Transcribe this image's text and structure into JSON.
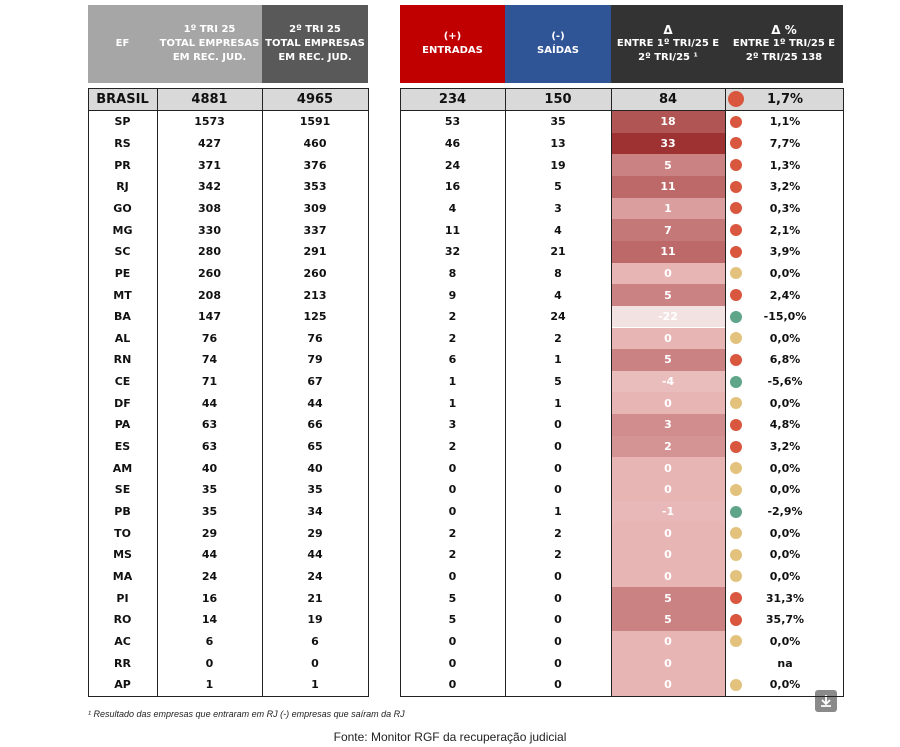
{
  "table": {
    "headers": {
      "ef": [
        "EF"
      ],
      "q1": [
        "1º TRI 25",
        "TOTAL EMPRESAS",
        "EM REC. JUD."
      ],
      "q2": [
        "2º TRI 25",
        "TOTAL EMPRESAS",
        "EM REC. JUD."
      ],
      "in": [
        "(+)",
        "ENTRADAS"
      ],
      "out": [
        "(-)",
        "SAÍDAS"
      ],
      "delta": [
        "Δ",
        "ENTRE  1º TRI/25 E",
        "2º TRI/25 ¹"
      ],
      "pct": [
        "Δ %",
        "ENTRE  1º TRI/25 E",
        "2º TRI/25 138"
      ]
    },
    "total": {
      "ef": "BRASIL",
      "q1": 4881,
      "q2": 4965,
      "in": 234,
      "out": 150,
      "delta": 84,
      "pct": "1,7%",
      "dot": "#d9573f"
    },
    "rows": [
      {
        "ef": "SP",
        "q1": 1573,
        "q2": 1591,
        "in": 53,
        "out": 35,
        "delta": 18,
        "pct": "1,1%",
        "dot": "#d9573f"
      },
      {
        "ef": "RS",
        "q1": 427,
        "q2": 460,
        "in": 46,
        "out": 13,
        "delta": 33,
        "pct": "7,7%",
        "dot": "#d9573f"
      },
      {
        "ef": "PR",
        "q1": 371,
        "q2": 376,
        "in": 24,
        "out": 19,
        "delta": 5,
        "pct": "1,3%",
        "dot": "#d9573f"
      },
      {
        "ef": "RJ",
        "q1": 342,
        "q2": 353,
        "in": 16,
        "out": 5,
        "delta": 11,
        "pct": "3,2%",
        "dot": "#d9573f"
      },
      {
        "ef": "GO",
        "q1": 308,
        "q2": 309,
        "in": 4,
        "out": 3,
        "delta": 1,
        "pct": "0,3%",
        "dot": "#d9573f"
      },
      {
        "ef": "MG",
        "q1": 330,
        "q2": 337,
        "in": 11,
        "out": 4,
        "delta": 7,
        "pct": "2,1%",
        "dot": "#d9573f"
      },
      {
        "ef": "SC",
        "q1": 280,
        "q2": 291,
        "in": 32,
        "out": 21,
        "delta": 11,
        "pct": "3,9%",
        "dot": "#d9573f"
      },
      {
        "ef": "PE",
        "q1": 260,
        "q2": 260,
        "in": 8,
        "out": 8,
        "delta": 0,
        "pct": "0,0%",
        "dot": "#e3c27e"
      },
      {
        "ef": "MT",
        "q1": 208,
        "q2": 213,
        "in": 9,
        "out": 4,
        "delta": 5,
        "pct": "2,4%",
        "dot": "#d9573f"
      },
      {
        "ef": "BA",
        "q1": 147,
        "q2": 125,
        "in": 2,
        "out": 24,
        "delta": -22,
        "pct": "-15,0%",
        "dot": "#5fa58a"
      },
      {
        "ef": "AL",
        "q1": 76,
        "q2": 76,
        "in": 2,
        "out": 2,
        "delta": 0,
        "pct": "0,0%",
        "dot": "#e3c27e"
      },
      {
        "ef": "RN",
        "q1": 74,
        "q2": 79,
        "in": 6,
        "out": 1,
        "delta": 5,
        "pct": "6,8%",
        "dot": "#d9573f"
      },
      {
        "ef": "CE",
        "q1": 71,
        "q2": 67,
        "in": 1,
        "out": 5,
        "delta": -4,
        "pct": "-5,6%",
        "dot": "#5fa58a"
      },
      {
        "ef": "DF",
        "q1": 44,
        "q2": 44,
        "in": 1,
        "out": 1,
        "delta": 0,
        "pct": "0,0%",
        "dot": "#e3c27e"
      },
      {
        "ef": "PA",
        "q1": 63,
        "q2": 66,
        "in": 3,
        "out": 0,
        "delta": 3,
        "pct": "4,8%",
        "dot": "#d9573f"
      },
      {
        "ef": "ES",
        "q1": 63,
        "q2": 65,
        "in": 2,
        "out": 0,
        "delta": 2,
        "pct": "3,2%",
        "dot": "#d9573f"
      },
      {
        "ef": "AM",
        "q1": 40,
        "q2": 40,
        "in": 0,
        "out": 0,
        "delta": 0,
        "pct": "0,0%",
        "dot": "#e3c27e"
      },
      {
        "ef": "SE",
        "q1": 35,
        "q2": 35,
        "in": 0,
        "out": 0,
        "delta": 0,
        "pct": "0,0%",
        "dot": "#e3c27e"
      },
      {
        "ef": "PB",
        "q1": 35,
        "q2": 34,
        "in": 0,
        "out": 1,
        "delta": -1,
        "pct": "-2,9%",
        "dot": "#5fa58a"
      },
      {
        "ef": "TO",
        "q1": 29,
        "q2": 29,
        "in": 2,
        "out": 2,
        "delta": 0,
        "pct": "0,0%",
        "dot": "#e3c27e"
      },
      {
        "ef": "MS",
        "q1": 44,
        "q2": 44,
        "in": 2,
        "out": 2,
        "delta": 0,
        "pct": "0,0%",
        "dot": "#e3c27e"
      },
      {
        "ef": "MA",
        "q1": 24,
        "q2": 24,
        "in": 0,
        "out": 0,
        "delta": 0,
        "pct": "0,0%",
        "dot": "#e3c27e"
      },
      {
        "ef": "PI",
        "q1": 16,
        "q2": 21,
        "in": 5,
        "out": 0,
        "delta": 5,
        "pct": "31,3%",
        "dot": "#d9573f"
      },
      {
        "ef": "RO",
        "q1": 14,
        "q2": 19,
        "in": 5,
        "out": 0,
        "delta": 5,
        "pct": "35,7%",
        "dot": "#d9573f"
      },
      {
        "ef": "AC",
        "q1": 6,
        "q2": 6,
        "in": 0,
        "out": 0,
        "delta": 0,
        "pct": "0,0%",
        "dot": "#e3c27e"
      },
      {
        "ef": "RR",
        "q1": 0,
        "q2": 0,
        "in": 0,
        "out": 0,
        "delta": 0,
        "pct": "na",
        "dot": null
      },
      {
        "ef": "AP",
        "q1": 1,
        "q2": 1,
        "in": 0,
        "out": 0,
        "delta": 0,
        "pct": "0,0%",
        "dot": "#e3c27e"
      }
    ]
  },
  "footnote": "¹ Resultado das empresas que entraram em RJ (-) empresas que saíram da RJ",
  "source": "Fonte: Monitor RGF da recuperação judicial"
}
